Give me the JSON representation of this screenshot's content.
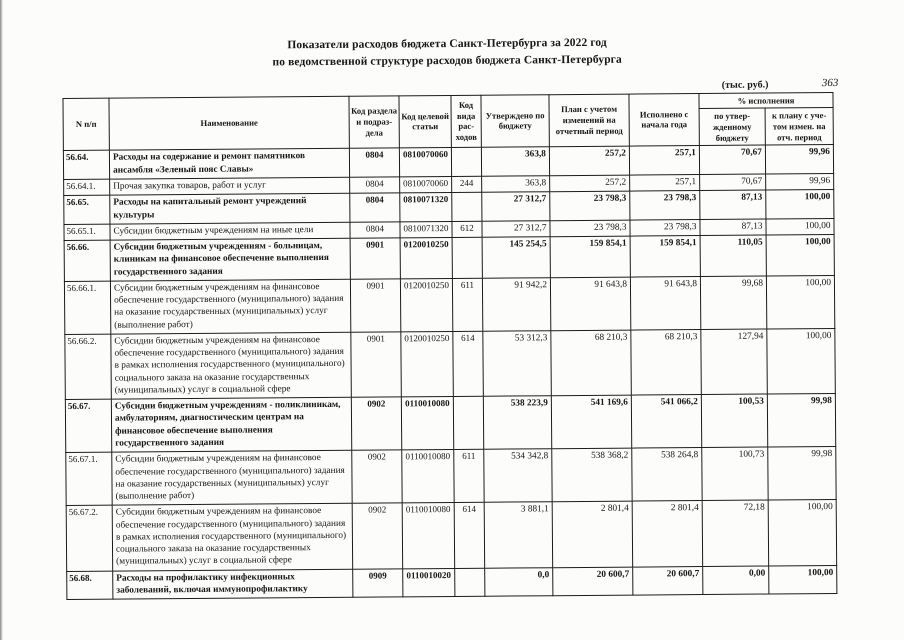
{
  "page": {
    "title_line1": "Показатели расходов бюджета Санкт-Петербурга за 2022 год",
    "title_line2": "по ведомственной структуре расходов бюджета Санкт-Петербурга",
    "units": "(тыс. руб.)",
    "page_number": "363"
  },
  "table": {
    "headers": {
      "num": "N п/п",
      "name": "Наименование",
      "section_code": "Код раздела и подраз­дела",
      "target_code": "Код целевой статьи",
      "type_code": "Код вида рас-ходов",
      "approved": "Утверждено по бюджету",
      "plan": "План с учетом изменений на отчетный период",
      "executed": "Исполнено с начала года",
      "percent_group": "% исполнения",
      "percent_approved": "по утвер-жденному бюджету",
      "percent_plan": "к плану с уче-том измен. на отч. период"
    },
    "rows": [
      {
        "num": "56.64.",
        "name": "Расходы на содержание и ремонт памятников ансамбля «Зеленый пояс Славы»",
        "c1": "0804",
        "c2": "0810070060",
        "c3": "",
        "v1": "363,8",
        "v2": "257,2",
        "v3": "257,1",
        "p1": "70,67",
        "p2": "99,96",
        "bold": true
      },
      {
        "num": "56.64.1.",
        "name": "Прочая закупка товаров, работ и услуг",
        "c1": "0804",
        "c2": "0810070060",
        "c3": "244",
        "v1": "363,8",
        "v2": "257,2",
        "v3": "257,1",
        "p1": "70,67",
        "p2": "99,96",
        "bold": false
      },
      {
        "num": "56.65.",
        "name": "Расходы на капитальный ремонт учреждений культуры",
        "c1": "0804",
        "c2": "0810071320",
        "c3": "",
        "v1": "27 312,7",
        "v2": "23 798,3",
        "v3": "23 798,3",
        "p1": "87,13",
        "p2": "100,00",
        "bold": true
      },
      {
        "num": "56.65.1.",
        "name": "Субсидии бюджетным учреждениям на иные цели",
        "c1": "0804",
        "c2": "0810071320",
        "c3": "612",
        "v1": "27 312,7",
        "v2": "23 798,3",
        "v3": "23 798,3",
        "p1": "87,13",
        "p2": "100,00",
        "bold": false
      },
      {
        "num": "56.66.",
        "name": "Субсидии бюджетным учреждениям - больницам, клиникам на финансовое обеспечение выполнения государственного задания",
        "c1": "0901",
        "c2": "0120010250",
        "c3": "",
        "v1": "145 254,5",
        "v2": "159 854,1",
        "v3": "159 854,1",
        "p1": "110,05",
        "p2": "100,00",
        "bold": true
      },
      {
        "num": "56.66.1.",
        "name": "Субсидии бюджетным учреждениям на финансовое обеспечение государственного (муниципального) задания на оказание государственных (муниципальных) услуг (выполнение работ)",
        "c1": "0901",
        "c2": "0120010250",
        "c3": "611",
        "v1": "91 942,2",
        "v2": "91 643,8",
        "v3": "91 643,8",
        "p1": "99,68",
        "p2": "100,00",
        "bold": false
      },
      {
        "num": "56.66.2.",
        "name": "Субсидии бюджетным учреждениям на финансовое обеспечение государственного (муниципального) задания в рамках исполнения государственного (муниципального) социального заказа на оказание государственных (муниципальных) услуг в социальной сфере",
        "c1": "0901",
        "c2": "0120010250",
        "c3": "614",
        "v1": "53 312,3",
        "v2": "68 210,3",
        "v3": "68 210,3",
        "p1": "127,94",
        "p2": "100,00",
        "bold": false
      },
      {
        "num": "56.67.",
        "name": "Субсидии бюджетным учреждениям - поликлиникам, амбулаториям, диагностическим центрам на финансовое обеспечение выполнения государственного задания",
        "c1": "0902",
        "c2": "0110010080",
        "c3": "",
        "v1": "538 223,9",
        "v2": "541 169,6",
        "v3": "541 066,2",
        "p1": "100,53",
        "p2": "99,98",
        "bold": true
      },
      {
        "num": "56.67.1.",
        "name": "Субсидии бюджетным учреждениям на финансовое обеспечение государственного (муниципального) задания на оказание государственных (муниципальных) услуг (выполнение работ)",
        "c1": "0902",
        "c2": "0110010080",
        "c3": "611",
        "v1": "534 342,8",
        "v2": "538 368,2",
        "v3": "538 264,8",
        "p1": "100,73",
        "p2": "99,98",
        "bold": false
      },
      {
        "num": "56.67.2.",
        "name": "Субсидии бюджетным учреждениям на финансовое обеспечение государственного (муниципального) задания в рамках исполнения государственного (муниципального) социального заказа на оказание государственных (муниципальных) услуг в социальной сфере",
        "c1": "0902",
        "c2": "0110010080",
        "c3": "614",
        "v1": "3 881,1",
        "v2": "2 801,4",
        "v3": "2 801,4",
        "p1": "72,18",
        "p2": "100,00",
        "bold": false
      },
      {
        "num": "56.68.",
        "name": "Расходы на профилактику инфекционных заболеваний, включая иммунопрофилактику",
        "c1": "0909",
        "c2": "0110010020",
        "c3": "",
        "v1": "0,0",
        "v2": "20 600,7",
        "v3": "20 600,7",
        "p1": "0,00",
        "p2": "100,00",
        "bold": true
      }
    ]
  }
}
